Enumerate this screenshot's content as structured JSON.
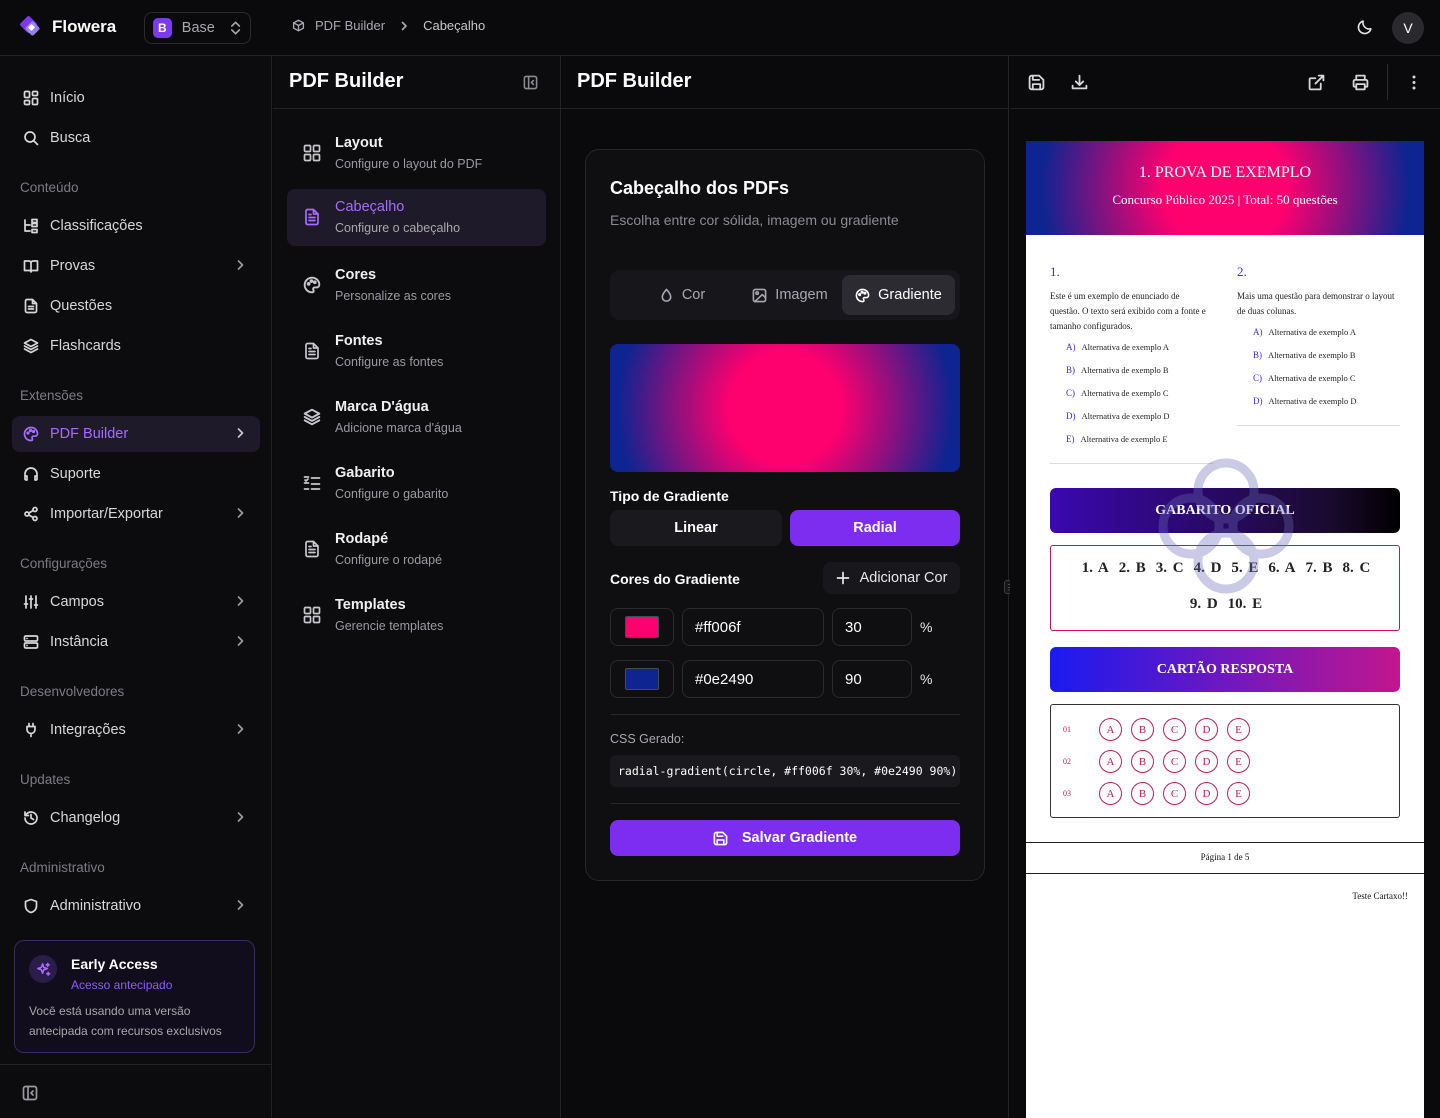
{
  "app": {
    "name": "Flowera",
    "workspace_badge": "B",
    "workspace": "Base",
    "user_initial": "V"
  },
  "breadcrumb": [
    "PDF Builder",
    "Cabeçalho"
  ],
  "sidebar": {
    "items": [
      {
        "label": "Início",
        "icon": "home-icon"
      },
      {
        "label": "Busca",
        "icon": "search-icon"
      }
    ],
    "sections": [
      {
        "title": "Conteúdo",
        "items": [
          {
            "label": "Classificações",
            "icon": "tree-icon"
          },
          {
            "label": "Provas",
            "icon": "book-icon",
            "chevron": true
          },
          {
            "label": "Questões",
            "icon": "file-icon"
          },
          {
            "label": "Flashcards",
            "icon": "layers-icon"
          }
        ]
      },
      {
        "title": "Extensões",
        "items": [
          {
            "label": "PDF Builder",
            "icon": "palette-icon",
            "chevron": true,
            "active": true
          },
          {
            "label": "Suporte",
            "icon": "headset-icon"
          },
          {
            "label": "Importar/Exportar",
            "icon": "share-icon",
            "chevron": true
          }
        ]
      },
      {
        "title": "Configurações",
        "items": [
          {
            "label": "Campos",
            "icon": "sliders-icon",
            "chevron": true
          },
          {
            "label": "Instância",
            "icon": "server-icon",
            "chevron": true
          }
        ]
      },
      {
        "title": "Desenvolvedores",
        "items": [
          {
            "label": "Integrações",
            "icon": "plug-icon",
            "chevron": true
          }
        ]
      },
      {
        "title": "Updates",
        "items": [
          {
            "label": "Changelog",
            "icon": "history-icon",
            "chevron": true
          }
        ]
      },
      {
        "title": "Administrativo",
        "items": [
          {
            "label": "Administrativo",
            "icon": "shield-icon",
            "chevron": true
          }
        ]
      }
    ],
    "early_access": {
      "title": "Early Access",
      "subtitle": "Acesso antecipado",
      "text": "Você está usando uma versão antecipada com recursos exclusivos"
    }
  },
  "config_panel": {
    "title": "PDF Builder",
    "items": [
      {
        "title": "Layout",
        "desc": "Configure o layout do PDF",
        "icon": "grid-icon"
      },
      {
        "title": "Cabeçalho",
        "desc": "Configure o cabeçalho",
        "icon": "file-text-icon",
        "active": true
      },
      {
        "title": "Cores",
        "desc": "Personalize as cores",
        "icon": "palette-icon"
      },
      {
        "title": "Fontes",
        "desc": "Configure as fontes",
        "icon": "file-text-icon"
      },
      {
        "title": "Marca D'água",
        "desc": "Adicione marca d'água",
        "icon": "layers-icon"
      },
      {
        "title": "Gabarito",
        "desc": "Configure o gabarito",
        "icon": "list-check-icon"
      },
      {
        "title": "Rodapé",
        "desc": "Configure o rodapé",
        "icon": "file-text-icon"
      },
      {
        "title": "Templates",
        "desc": "Gerencie templates",
        "icon": "grid-icon"
      }
    ]
  },
  "editor": {
    "title": "PDF Builder",
    "card_title": "Cabeçalho dos PDFs",
    "card_subtitle": "Escolha entre cor sólida, imagem ou gradiente",
    "tabs": [
      {
        "label": "Cor",
        "icon": "droplet-icon"
      },
      {
        "label": "Imagem",
        "icon": "image-icon"
      },
      {
        "label": "Gradiente",
        "icon": "palette-icon",
        "active": true
      }
    ],
    "gradient_type_label": "Tipo de Gradiente",
    "gradient_types": [
      "Linear",
      "Radial"
    ],
    "gradient_type_selected": "Radial",
    "colors_label": "Cores do Gradiente",
    "add_color_label": "Adicionar Cor",
    "colors": [
      {
        "hex": "#ff006f",
        "stop": "30",
        "unit": "%"
      },
      {
        "hex": "#0e2490",
        "stop": "90",
        "unit": "%"
      }
    ],
    "css_label": "CSS Gerado:",
    "css_value": "radial-gradient(circle, #ff006f 30%, #0e2490 90%)",
    "save_label": "Salvar Gradiente"
  },
  "preview": {
    "header_title": "1. PROVA DE EXEMPLO",
    "header_subtitle": "Concurso Público 2025 | Total: 50 questões",
    "questions": [
      {
        "number": "1.",
        "text": "Este é um exemplo de enunciado de questão. O texto será exibido com a fonte e tamanho configurados.",
        "alternatives": [
          [
            "A)",
            "Alternativa de exemplo A"
          ],
          [
            "B)",
            "Alternativa de exemplo B"
          ],
          [
            "C)",
            "Alternativa de exemplo C"
          ],
          [
            "D)",
            "Alternativa de exemplo D"
          ],
          [
            "E)",
            "Alternativa de exemplo E"
          ]
        ]
      },
      {
        "number": "2.",
        "text": "Mais uma questão para demonstrar o layout de duas colunas.",
        "alternatives": [
          [
            "A)",
            "Alternativa de exemplo A"
          ],
          [
            "B)",
            "Alternativa de exemplo B"
          ],
          [
            "C)",
            "Alternativa de exemplo C"
          ],
          [
            "D)",
            "Alternativa de exemplo D"
          ]
        ]
      }
    ],
    "answer_key_title": "GABARITO OFICIAL",
    "answer_key_rows": [
      [
        "1. A",
        "2. B",
        "3. C",
        "4. D",
        "5. E",
        "6. A",
        "7. B",
        "8. C"
      ],
      [
        "9. D",
        "10. E"
      ]
    ],
    "answer_sheet_title": "CARTÃO RESPOSTA",
    "answer_sheet_rows": [
      "01",
      "02",
      "03"
    ],
    "answer_sheet_options": [
      "A",
      "B",
      "C",
      "D",
      "E"
    ],
    "page_footer": "Página 1 de 5",
    "footer_note": "Teste Cartaxo!!"
  },
  "colors": {
    "accent": "#7c2df0",
    "accent_text": "#a66cff",
    "gradient_from": "#ff006f",
    "gradient_to": "#0e2490"
  }
}
